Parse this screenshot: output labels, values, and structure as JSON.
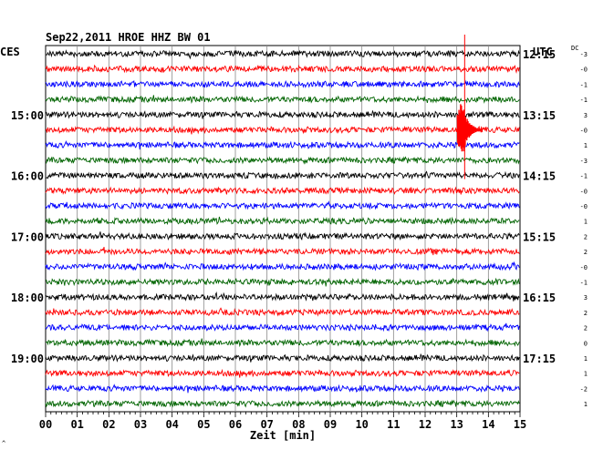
{
  "header": {
    "title": "Sep22,2011   HROE HHZ BW 01",
    "left_zone": "CES",
    "right_zone": "UTC",
    "dc_header": "DC"
  },
  "chart_data": {
    "type": "line",
    "title": "Sep22,2011   HROE HHZ BW 01",
    "xlabel": "Zeit [min]",
    "xlim": [
      0,
      15
    ],
    "x_ticks": [
      "00",
      "01",
      "02",
      "03",
      "04",
      "05",
      "06",
      "07",
      "08",
      "09",
      "10",
      "11",
      "12",
      "13",
      "14",
      "15"
    ],
    "traces_per_hour": 4,
    "trace_colors": [
      "#000000",
      "#ff0000",
      "#0000ff",
      "#006400"
    ],
    "left_hour_labels": [
      {
        "row": 4,
        "label": "15:00"
      },
      {
        "row": 8,
        "label": "16:00"
      },
      {
        "row": 12,
        "label": "17:00"
      },
      {
        "row": 16,
        "label": "18:00"
      },
      {
        "row": 20,
        "label": "19:00"
      }
    ],
    "right_hour_labels": [
      {
        "row": 0,
        "label": "12:15"
      },
      {
        "row": 4,
        "label": "13:15"
      },
      {
        "row": 8,
        "label": "14:15"
      },
      {
        "row": 12,
        "label": "15:15"
      },
      {
        "row": 16,
        "label": "16:15"
      },
      {
        "row": 20,
        "label": "17:15"
      }
    ],
    "dc_offsets": [
      "-3",
      "-0",
      "-1",
      "-1",
      "3",
      "-0",
      "1",
      "-3",
      "-1",
      "-0",
      "-0",
      "1",
      "2",
      "2",
      "-0",
      "-1",
      "3",
      "2",
      "2",
      "0",
      "1",
      "1",
      "-2",
      "1"
    ],
    "events": [
      {
        "minute": 13.25,
        "row_start": 4,
        "row_end": 8,
        "peak_row": 5,
        "color": "#ff0000",
        "note": "large signal"
      }
    ]
  },
  "footer": {
    "corner_mark": "^"
  }
}
